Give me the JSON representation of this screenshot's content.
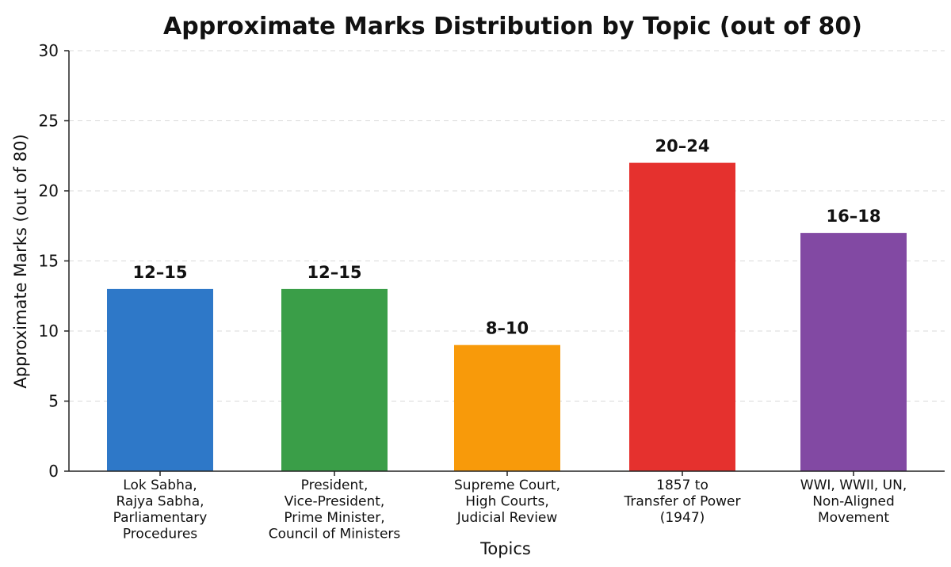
{
  "chart_data": {
    "type": "bar",
    "title": "Approximate Marks Distribution by Topic (out of 80)",
    "xlabel": "Topics",
    "ylabel": "Approximate Marks (out of 80)",
    "ylim": [
      0,
      30
    ],
    "yticks": [
      0,
      5,
      10,
      15,
      20,
      25,
      30
    ],
    "grid": true,
    "categories": [
      [
        "Lok Sabha,",
        "Rajya Sabha,",
        "Parliamentary",
        "Procedures"
      ],
      [
        "President,",
        "Vice-President,",
        "Prime Minister,",
        "Council of Ministers"
      ],
      [
        "Supreme Court,",
        "High Courts,",
        "Judicial Review"
      ],
      [
        "1857 to",
        "Transfer of Power",
        "(1947)"
      ],
      [
        "WWI, WWII, UN,",
        "Non-Aligned",
        "Movement"
      ]
    ],
    "values": [
      13,
      13,
      9,
      22,
      17
    ],
    "data_labels": [
      "12–15",
      "12–15",
      "8–10",
      "20–24",
      "16–18"
    ],
    "colors": [
      "#2e78c8",
      "#3a9e48",
      "#f89a0a",
      "#e5312e",
      "#8249a3"
    ]
  }
}
